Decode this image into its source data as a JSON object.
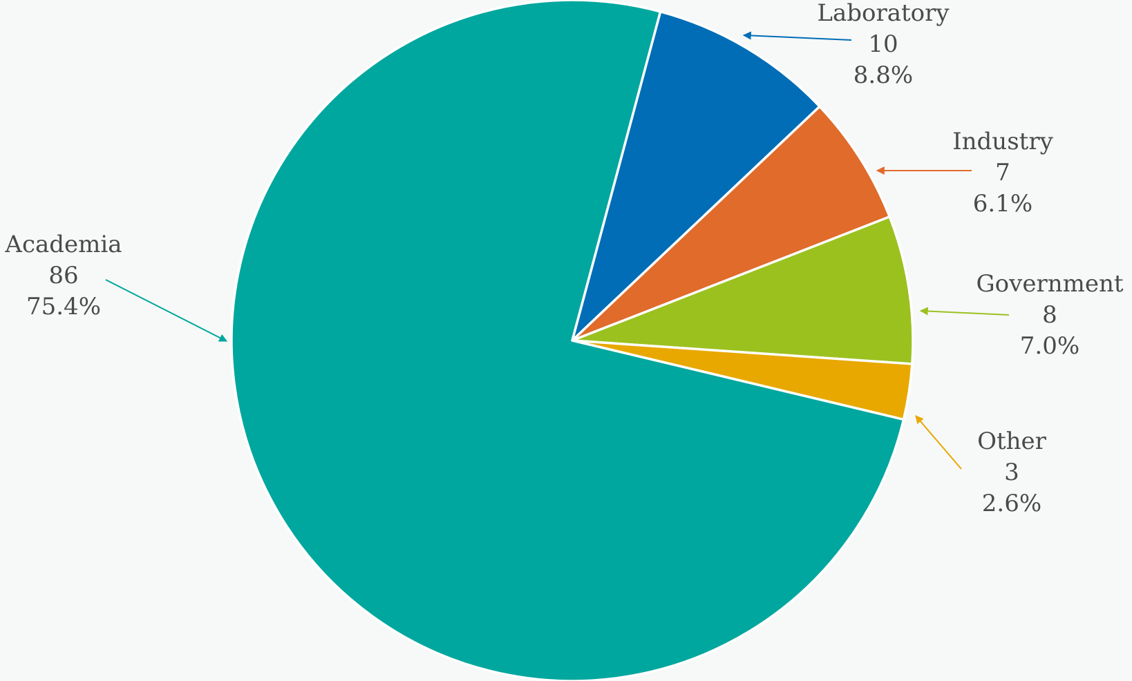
{
  "chart_data": {
    "type": "pie",
    "start_angle_deg": -75,
    "direction": "clockwise",
    "slices": [
      {
        "label": "Laboratory",
        "value": 10,
        "percent": "8.8%",
        "color": "#006db6",
        "label_position": "top-right"
      },
      {
        "label": "Industry",
        "value": 7,
        "percent": "6.1%",
        "color": "#e06b2b",
        "label_position": "right"
      },
      {
        "label": "Government",
        "value": 8,
        "percent": "7.0%",
        "color": "#9bc11f",
        "label_position": "right"
      },
      {
        "label": "Other",
        "value": 3,
        "percent": "2.6%",
        "color": "#e8a800",
        "label_position": "bottom-right"
      },
      {
        "label": "Academia",
        "value": 86,
        "percent": "75.4%",
        "color": "#00a79e",
        "label_position": "left"
      }
    ]
  }
}
